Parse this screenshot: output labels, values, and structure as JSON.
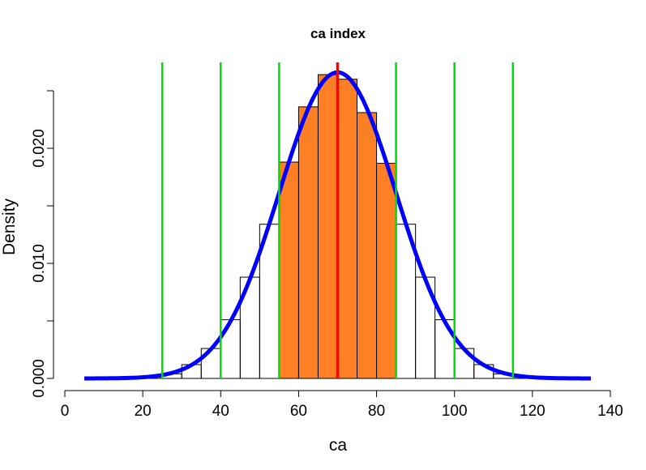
{
  "chart_data": {
    "type": "histogram",
    "title": "ca index",
    "xlabel": "ca",
    "ylabel": "Density",
    "xlim": [
      0,
      140
    ],
    "ylim": [
      0,
      0.025
    ],
    "x_ticks": [
      "0",
      "20",
      "40",
      "60",
      "80",
      "100",
      "120",
      "140"
    ],
    "y_ticks": [
      "0.000",
      "0.010",
      "0.020"
    ],
    "bin_width": 5,
    "bins": [
      {
        "start": 5,
        "density": 0.0
      },
      {
        "start": 10,
        "density": 0.0
      },
      {
        "start": 15,
        "density": 0.0
      },
      {
        "start": 20,
        "density": 0.0001
      },
      {
        "start": 25,
        "density": 0.0004
      },
      {
        "start": 30,
        "density": 0.0012
      },
      {
        "start": 35,
        "density": 0.0026
      },
      {
        "start": 40,
        "density": 0.0051
      },
      {
        "start": 45,
        "density": 0.0088
      },
      {
        "start": 50,
        "density": 0.0134
      },
      {
        "start": 55,
        "density": 0.0188
      },
      {
        "start": 60,
        "density": 0.0236
      },
      {
        "start": 65,
        "density": 0.0264
      },
      {
        "start": 70,
        "density": 0.026
      },
      {
        "start": 75,
        "density": 0.0231
      },
      {
        "start": 80,
        "density": 0.0187
      },
      {
        "start": 85,
        "density": 0.0134
      },
      {
        "start": 90,
        "density": 0.0088
      },
      {
        "start": 95,
        "density": 0.0051
      },
      {
        "start": 100,
        "density": 0.0026
      },
      {
        "start": 105,
        "density": 0.0012
      },
      {
        "start": 110,
        "density": 0.0004
      },
      {
        "start": 115,
        "density": 0.0001
      },
      {
        "start": 120,
        "density": 0.0
      },
      {
        "start": 125,
        "density": 0.0
      },
      {
        "start": 130,
        "density": 0.0
      }
    ],
    "highlight_range": [
      55,
      85
    ],
    "highlight_color": "#ff7f24",
    "bar_outline_color": "#000000",
    "density_curve": {
      "mean": 70,
      "sd": 15,
      "x_range": [
        5,
        135
      ],
      "color": "#0000ff"
    },
    "mean_line": {
      "x": 70,
      "color": "#ff0000"
    },
    "sd_lines": {
      "x": [
        25,
        40,
        55,
        85,
        100,
        115
      ],
      "color": "#00dd00"
    }
  }
}
